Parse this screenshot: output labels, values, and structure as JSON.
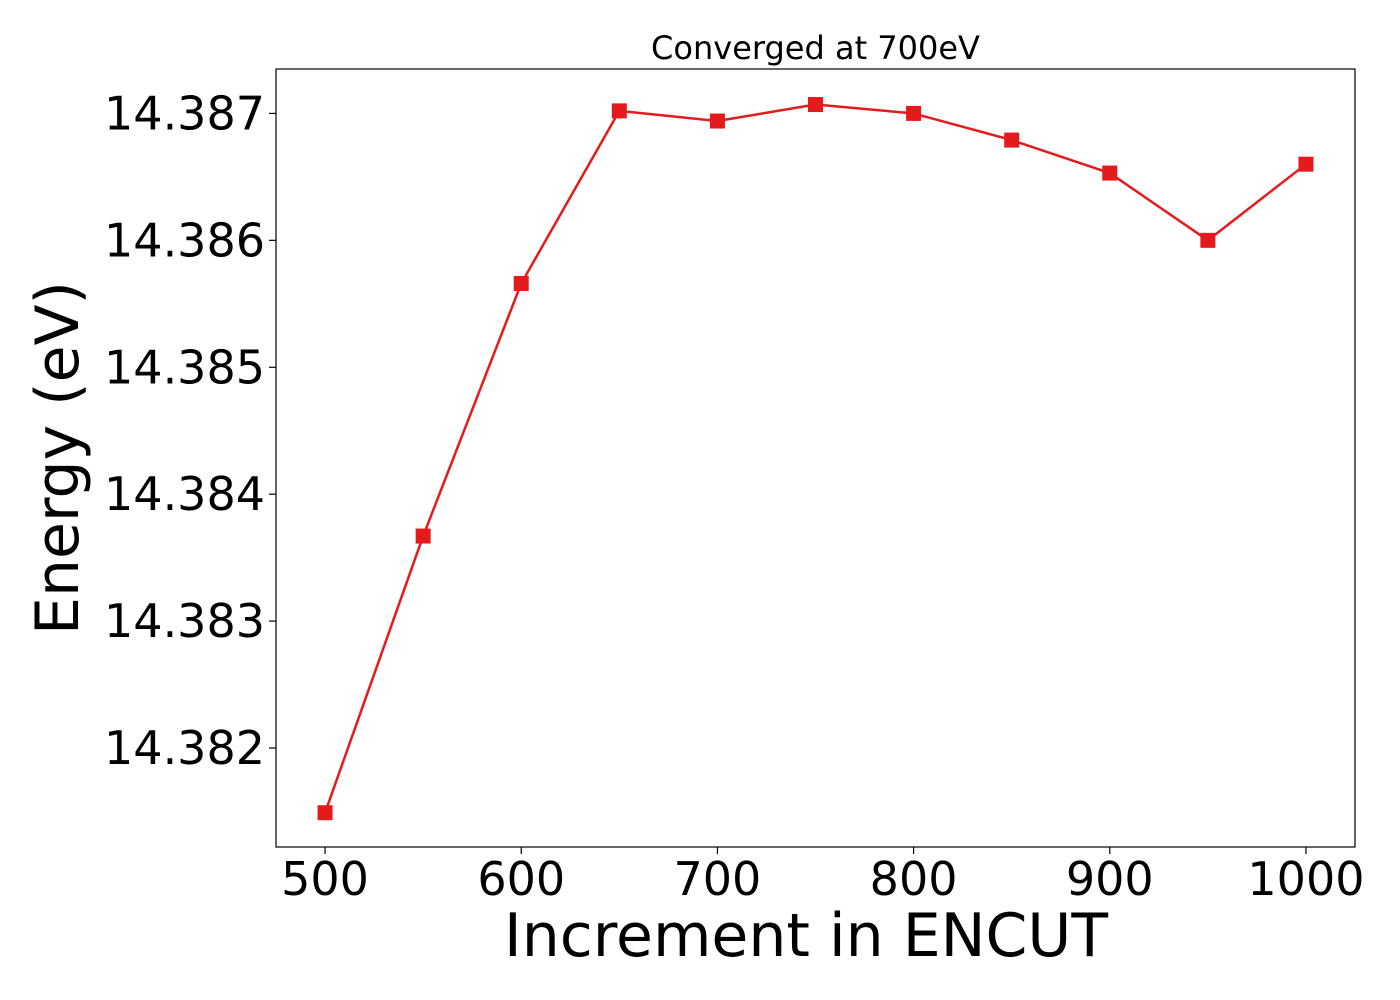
{
  "chart_data": {
    "type": "line",
    "title": "Converged at 700eV",
    "xlabel": "Increment in ENCUT",
    "ylabel": "Energy (eV)",
    "x": [
      500,
      550,
      600,
      650,
      700,
      750,
      800,
      850,
      900,
      950,
      1000
    ],
    "series": [
      {
        "values": [
          14.38149,
          14.38367,
          14.38566,
          14.38702,
          14.38694,
          14.38707,
          14.387,
          14.38679,
          14.38653,
          14.386,
          14.3866
        ],
        "color": "#e41a1c",
        "marker": "square"
      }
    ],
    "xlim": [
      475,
      1025
    ],
    "ylim": [
      14.38122,
      14.38735
    ],
    "xticks": [
      500,
      600,
      700,
      800,
      900,
      1000
    ],
    "xtick_labels": [
      "500",
      "600",
      "700",
      "800",
      "900",
      "1000"
    ],
    "yticks": [
      14.382,
      14.383,
      14.384,
      14.385,
      14.386,
      14.387
    ],
    "ytick_labels": [
      "14.382",
      "14.383",
      "14.384",
      "14.385",
      "14.386",
      "14.387"
    ],
    "grid": false,
    "legend": "none"
  }
}
